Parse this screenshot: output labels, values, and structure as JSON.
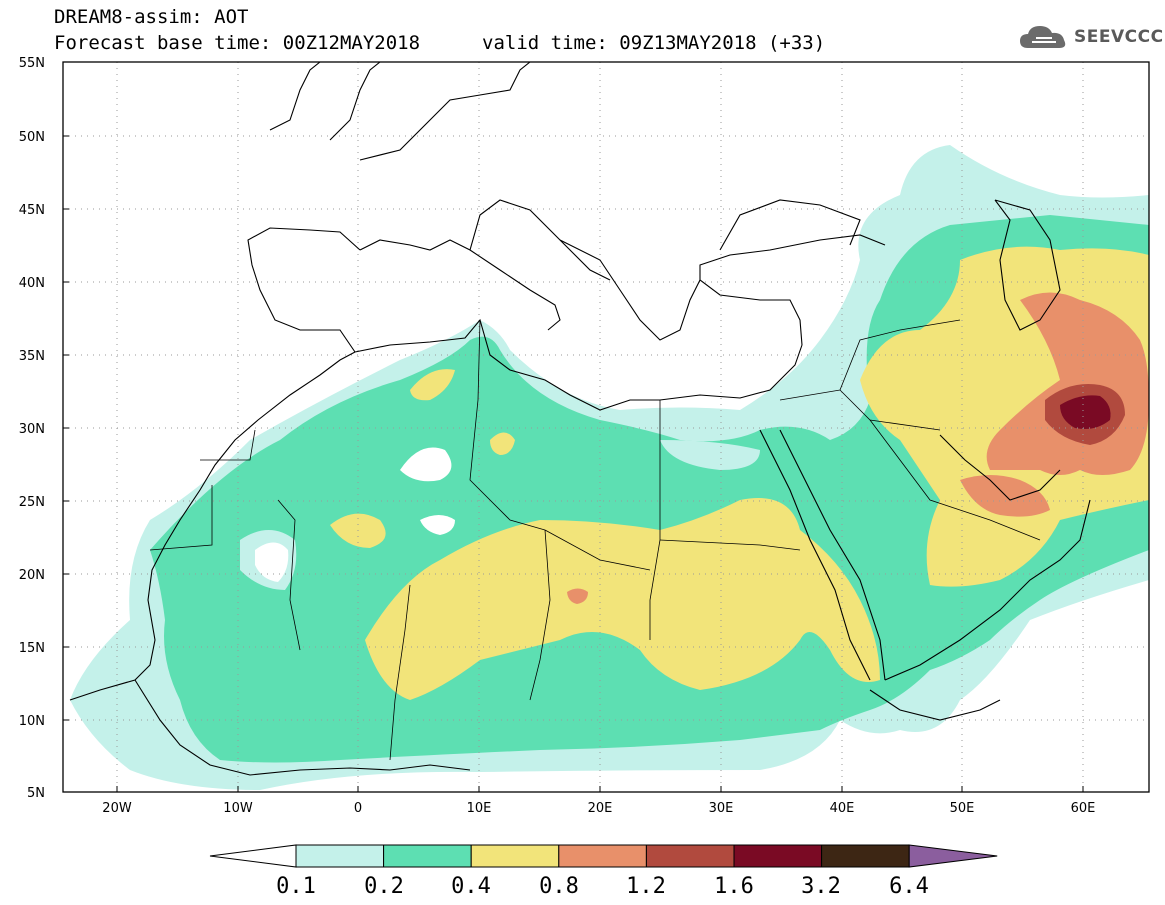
{
  "header": {
    "title_line": "DREAM8-assim: AOT",
    "base_time_line": "Forecast base time: 00Z12MAY2018",
    "valid_time_line": "valid time: 09Z13MAY2018 (+33)",
    "logo_text": "SEEVCCC"
  },
  "map": {
    "lon_ticks": [
      "20W",
      "10W",
      "0",
      "10E",
      "20E",
      "30E",
      "40E",
      "50E",
      "60E"
    ],
    "lat_ticks": [
      "55N",
      "50N",
      "45N",
      "40N",
      "35N",
      "30N",
      "25N",
      "20N",
      "15N",
      "10N",
      "5N"
    ]
  },
  "colorbar": {
    "labels": [
      "0.1",
      "0.2",
      "0.4",
      "0.8",
      "1.2",
      "1.6",
      "3.2",
      "6.4"
    ],
    "colors": [
      "#ffffff",
      "#c4f1ea",
      "#5ddfb2",
      "#f2e47a",
      "#e8906a",
      "#b14a3e",
      "#7a0a24",
      "#3d2614",
      "#8b5e9e"
    ]
  }
}
